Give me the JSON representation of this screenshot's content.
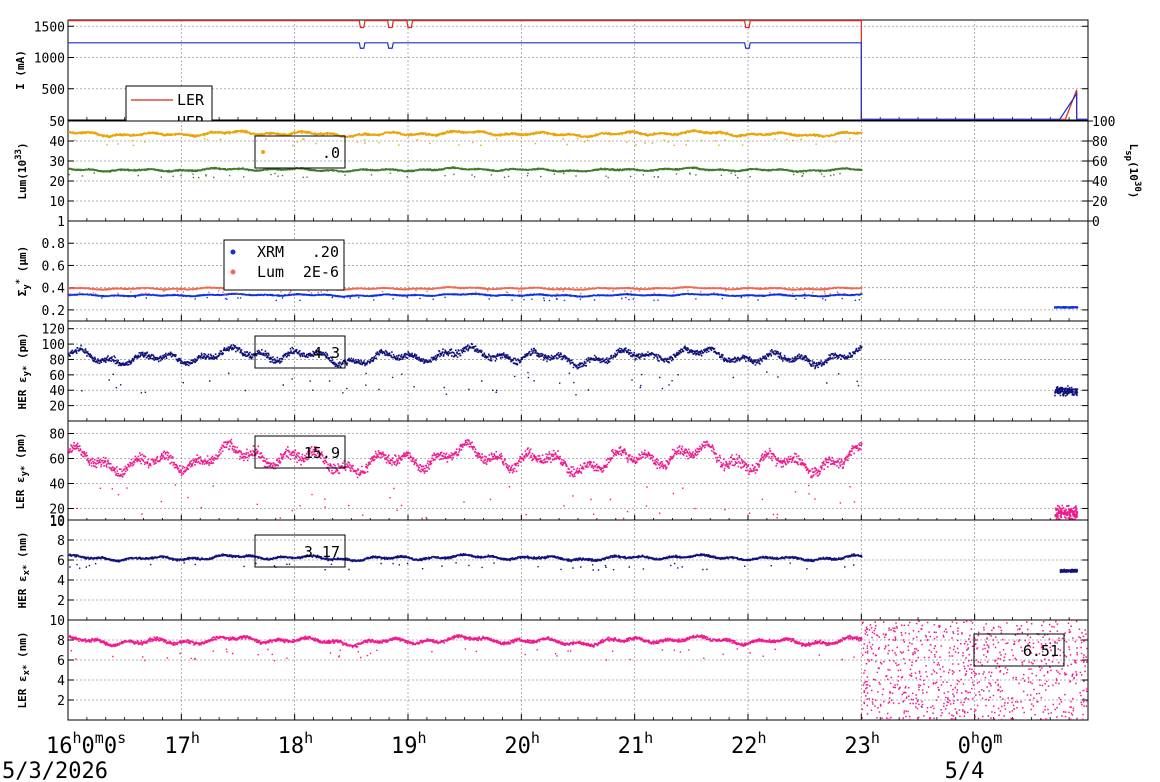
{
  "chart_data": {
    "type": "scatter",
    "x_range": [
      16,
      25
    ],
    "x_ticks": [
      {
        "x": 16,
        "label": "16",
        "sup": "h",
        "label2": "0",
        "sup2": "m",
        "label3": "0",
        "sup3": "s"
      },
      {
        "x": 17,
        "label": "17",
        "sup": "h"
      },
      {
        "x": 18,
        "label": "18",
        "sup": "h"
      },
      {
        "x": 19,
        "label": "19",
        "sup": "h"
      },
      {
        "x": 20,
        "label": "20",
        "sup": "h"
      },
      {
        "x": 21,
        "label": "21",
        "sup": "h"
      },
      {
        "x": 22,
        "label": "22",
        "sup": "h"
      },
      {
        "x": 23,
        "label": "23",
        "sup": "h"
      },
      {
        "x": 24,
        "label": "0",
        "sup": "h",
        "label2": "0",
        "sup2": "m"
      }
    ],
    "dates": [
      {
        "x": 16,
        "label": "5/3/2026"
      },
      {
        "x": 24,
        "label": "5/4"
      }
    ],
    "panels": [
      {
        "id": "current",
        "ylabel": "I (mA)",
        "ylim": [
          0,
          1600
        ],
        "yticks": [
          500,
          1000,
          1500
        ],
        "series": [
          {
            "name": "LER",
            "color": "#e0251c",
            "kind": "line",
            "level": 1590,
            "end": 23.0,
            "dips": [
              18.6,
              18.85,
              19.02,
              22.0
            ],
            "ramp_start": 24.8,
            "ramp_end": 24.9,
            "ramp_level": 480
          },
          {
            "name": "HER",
            "color": "#1c2fd0",
            "kind": "line",
            "level": 1235,
            "end": 23.0,
            "dips": [
              18.6,
              18.85,
              22.0
            ],
            "ramp_start": 24.75,
            "ramp_end": 24.9,
            "ramp_level": 420
          }
        ],
        "legend": [
          "LER",
          "HER"
        ]
      },
      {
        "id": "lumi",
        "ylabel": "Lum(10",
        "ylabel_sup": "33",
        "ylabel_end": ")",
        "ylim": [
          0,
          50
        ],
        "yticks": [
          10,
          20,
          30,
          40,
          50
        ],
        "y2label": "L",
        "y2label_sub": "sp",
        "y2label_mid": "(10",
        "y2label_sup": "30",
        "y2label_end": ")",
        "y2lim": [
          0,
          100
        ],
        "y2ticks": [
          0,
          20,
          40,
          60,
          80,
          100
        ],
        "series": [
          {
            "name": "",
            "color": "#e8a50a",
            "kind": "band",
            "level": 44,
            "spread": 1.2,
            "end": 23.0
          },
          {
            "name": "",
            "color": "#3f7a2a",
            "kind": "band",
            "level": 26,
            "spread": 0.8,
            "end": 23.0
          }
        ],
        "legend_value": ".0"
      },
      {
        "id": "sigma",
        "ylabel": "Σ",
        "ylabel_sub": "y",
        "ylabel_sup": "*",
        "ylabel_end": " (μm)",
        "ylim": [
          0.1,
          1.0
        ],
        "yticks": [
          0.2,
          0.4,
          0.6,
          0.8,
          1
        ],
        "series": [
          {
            "name": "XRM",
            "value": ".20",
            "color": "#1030e0",
            "kind": "band",
            "level": 0.34,
            "spread": 0.01,
            "end": 23.0,
            "late_start": 24.7,
            "late_end": 24.9,
            "late_level": 0.23
          },
          {
            "name": "Lum",
            "value": "2E-6",
            "color": "#f06a50",
            "kind": "band",
            "level": 0.4,
            "spread": 0.01,
            "end": 23.0
          }
        ]
      },
      {
        "id": "her_ey",
        "ylabel": "HER ε",
        "ylabel_sub": "y*",
        "ylabel_end": " (pm)",
        "ylim": [
          0,
          130
        ],
        "yticks": [
          20,
          40,
          60,
          80,
          100,
          120
        ],
        "series": [
          {
            "name": "",
            "color": "#10127a",
            "kind": "band",
            "level": 85,
            "spread": 10,
            "end": 23.0,
            "late_start": 24.7,
            "late_end": 24.9,
            "late_level": 40
          }
        ],
        "legend_value": "4.3"
      },
      {
        "id": "ler_ey",
        "ylabel": "LER ε",
        "ylabel_sub": "y*",
        "ylabel_end": " (pm)",
        "ylim": [
          10,
          90
        ],
        "yticks": [
          10,
          20,
          40,
          60,
          80
        ],
        "series": [
          {
            "name": "",
            "color": "#f0188c",
            "kind": "band",
            "level": 60,
            "spread": 10,
            "end": 23.0,
            "late_start": 24.7,
            "late_end": 24.9,
            "late_level": 17
          }
        ],
        "legend_value": "15.9"
      },
      {
        "id": "her_ex",
        "ylabel": "HER ε",
        "ylabel_sub": "x*",
        "ylabel_end": " (nm)",
        "ylim": [
          0,
          10
        ],
        "yticks": [
          2,
          4,
          6,
          8,
          10
        ],
        "series": [
          {
            "name": "",
            "color": "#10127a",
            "kind": "band",
            "level": 6.3,
            "spread": 0.25,
            "end": 23.0,
            "late_start": 24.75,
            "late_end": 24.9,
            "late_level": 5
          }
        ],
        "legend_value": "3.17"
      },
      {
        "id": "ler_ex",
        "ylabel": "LER ε",
        "ylabel_sub": "x*",
        "ylabel_end": " (nm)",
        "ylim": [
          0,
          10
        ],
        "yticks": [
          2,
          4,
          6,
          8,
          10
        ],
        "series": [
          {
            "name": "",
            "color": "#f0188c",
            "kind": "band",
            "level": 8,
            "spread": 0.4,
            "end": 23.0,
            "noise_start": 23.0,
            "noise_end": 25.0
          }
        ],
        "legend_value": "6.51"
      }
    ]
  }
}
